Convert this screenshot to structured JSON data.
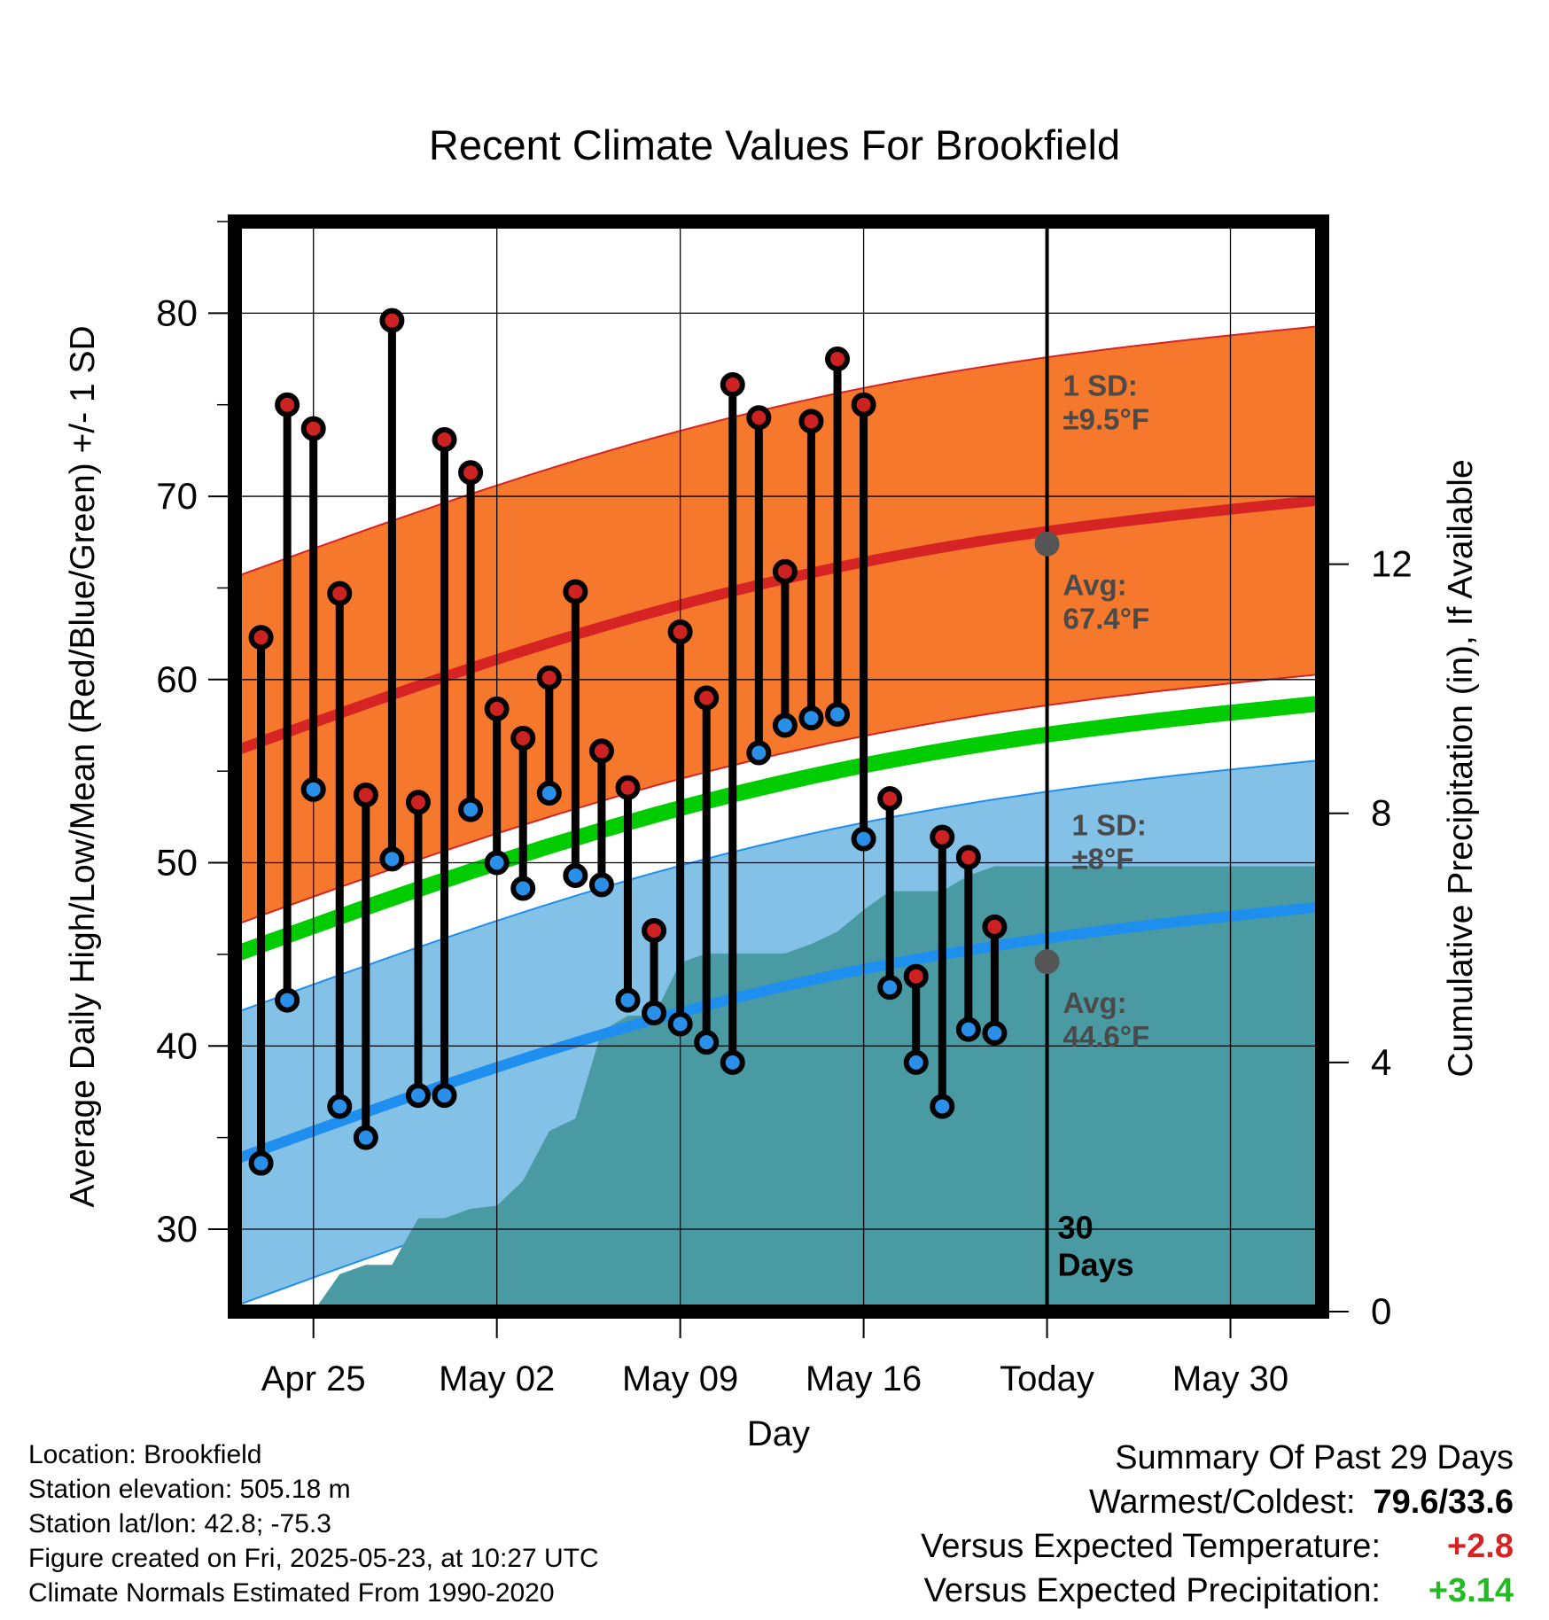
{
  "title": "Recent Climate Values For Brookfield",
  "chart_data": {
    "type": "line",
    "xlabel": "Day",
    "ylabel_left": "Average Daily High/Low/Mean (Red/Blue/Green) +/- 1 SD",
    "ylabel_right": "Cumulative Precipitation (in), If Available",
    "x_ticks": [
      "Apr 25",
      "May 02",
      "May 09",
      "May 16",
      "Today",
      "May 30"
    ],
    "x_tick_days": [
      3,
      10,
      17,
      24,
      31,
      38
    ],
    "x_range_days": [
      0,
      41.5
    ],
    "today_day": 31,
    "ylim_left": [
      25.5,
      85
    ],
    "yticks_left": [
      30,
      40,
      50,
      60,
      70,
      80
    ],
    "ylim_right": [
      0,
      17.5
    ],
    "yticks_right": [
      0,
      4,
      8,
      12
    ],
    "series": [
      {
        "name": "High",
        "color": "#cc2222",
        "values": [
          62.3,
          75.0,
          73.7,
          64.7,
          53.7,
          79.6,
          53.3,
          73.1,
          71.3,
          58.4,
          56.8,
          60.1,
          64.8,
          56.1,
          54.1,
          46.3,
          62.6,
          59.0,
          76.1,
          74.3,
          65.9,
          74.1,
          77.5,
          75.0,
          53.5,
          43.8,
          51.4,
          50.3,
          46.5
        ]
      },
      {
        "name": "Low",
        "color": "#2a8fe8",
        "values": [
          33.6,
          42.5,
          54.0,
          36.7,
          35.0,
          50.2,
          37.3,
          37.3,
          52.9,
          50.0,
          48.6,
          53.8,
          49.3,
          48.8,
          42.5,
          41.8,
          41.2,
          40.2,
          39.1,
          56.0,
          57.5,
          57.9,
          58.1,
          51.3,
          43.2,
          39.1,
          36.7,
          40.9,
          40.7
        ]
      }
    ],
    "first_day": 1,
    "normals": {
      "high_avg": [
        56.1,
        69.8
      ],
      "high_sd": 9.5,
      "low_avg": [
        33.8,
        47.6
      ],
      "low_sd": 8,
      "mean_avg": [
        45.0,
        58.7
      ]
    },
    "precip_cumulative": [
      [
        0,
        0
      ],
      [
        3,
        0
      ],
      [
        4,
        0.6
      ],
      [
        5,
        0.75
      ],
      [
        6,
        0.75
      ],
      [
        7,
        1.5
      ],
      [
        8,
        1.5
      ],
      [
        9,
        1.65
      ],
      [
        10,
        1.7
      ],
      [
        11,
        2.1
      ],
      [
        12,
        2.9
      ],
      [
        13,
        3.1
      ],
      [
        14,
        4.5
      ],
      [
        15,
        4.75
      ],
      [
        16,
        4.75
      ],
      [
        17,
        5.6
      ],
      [
        18,
        5.75
      ],
      [
        19,
        5.75
      ],
      [
        20,
        5.75
      ],
      [
        21,
        5.75
      ],
      [
        22,
        5.9
      ],
      [
        23,
        6.1
      ],
      [
        24,
        6.45
      ],
      [
        25,
        6.75
      ],
      [
        26,
        6.75
      ],
      [
        27,
        6.75
      ],
      [
        28,
        7.0
      ],
      [
        29,
        7.15
      ],
      [
        41.5,
        7.15
      ]
    ],
    "colors": {
      "high_band": "#f5782d",
      "high_line": "#d62424",
      "low_band": "#84c1e6",
      "low_line": "#1f8fef",
      "mean_line": "#00cc00",
      "precip": "#4a9aa3"
    },
    "annotations": {
      "high_sd_label": [
        "1 SD:",
        "±9.5°F"
      ],
      "high_avg_label": [
        "Avg:",
        "67.4°F"
      ],
      "high_today_value": 67.4,
      "low_sd_label": [
        "1 SD:",
        "±8°F"
      ],
      "low_avg_label": [
        "Avg:",
        "44.6°F"
      ],
      "low_today_value": 44.6,
      "days_label": [
        "30",
        "Days"
      ]
    }
  },
  "footer": {
    "location": "Location: Brookfield",
    "elevation": "Station elevation: 505.18 m",
    "latlon": "Station lat/lon: 42.8; -75.3",
    "created": "Figure created on Fri, 2025-05-23, at 10:27 UTC",
    "normals": "Climate Normals Estimated From 1990-2020"
  },
  "summary": {
    "heading": "Summary Of Past 29 Days",
    "warm_label": "Warmest/Coldest:",
    "warm_value": "79.6/33.6",
    "temp_label": "Versus Expected Temperature:",
    "temp_value": "+2.8",
    "temp_color": "#d62424",
    "precip_label": "Versus Expected Precipitation:",
    "precip_value": "+3.14",
    "precip_color": "#22bb22"
  }
}
